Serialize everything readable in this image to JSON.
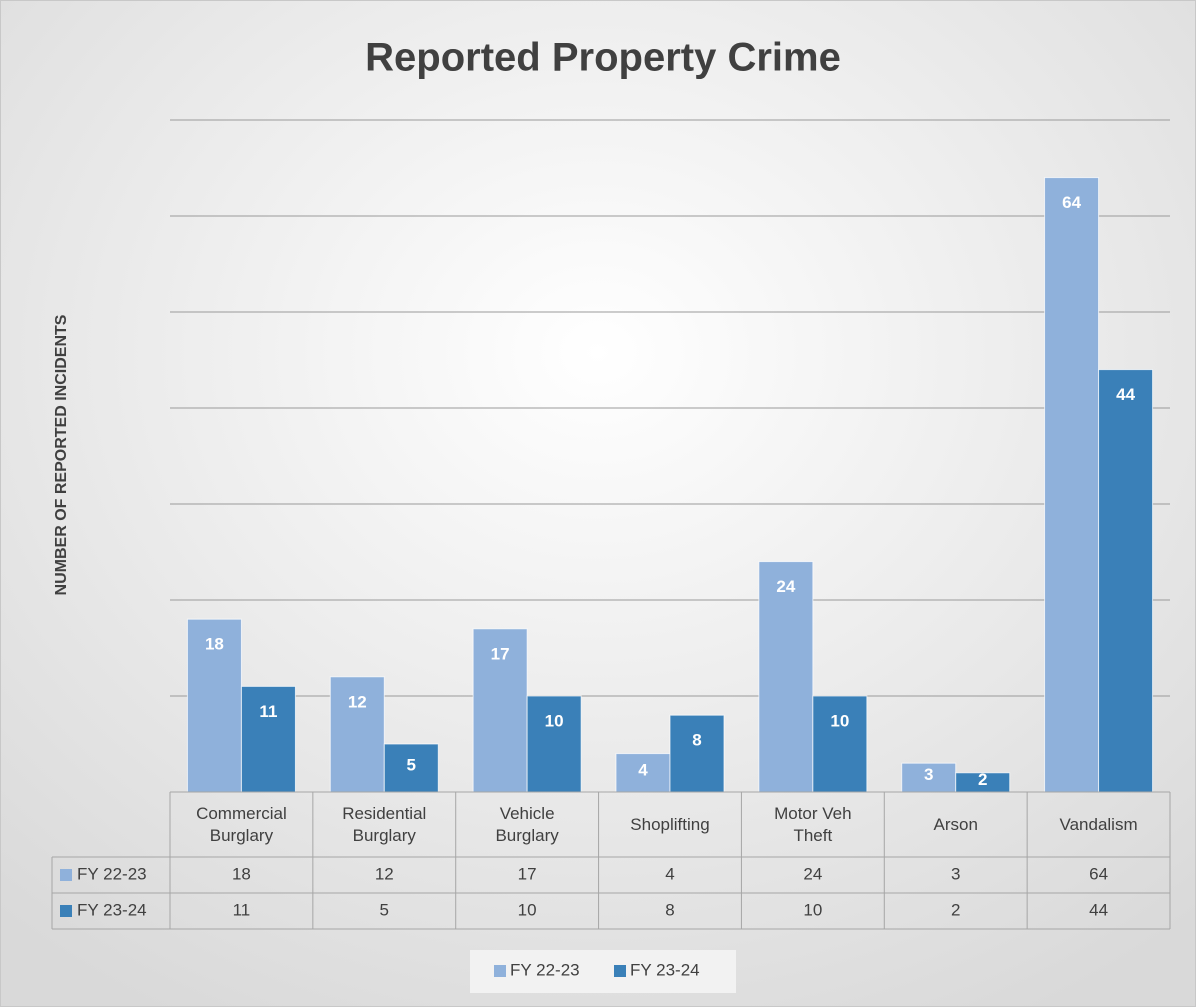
{
  "chart_data": {
    "type": "bar",
    "title": "Reported Property Crime",
    "y_label": "NUMBER OF REPORTED INCIDENTS",
    "categories": [
      "Commercial Burglary",
      "Residential Burglary",
      "Vehicle Burglary",
      "Shoplifting",
      "Motor Veh Theft",
      "Arson",
      "Vandalism"
    ],
    "series": [
      {
        "name": "FY 22-23",
        "color": "#8fb1db",
        "values": [
          18,
          12,
          17,
          4,
          24,
          3,
          64
        ]
      },
      {
        "name": "FY 23-24",
        "color": "#3a80b8",
        "values": [
          11,
          5,
          10,
          8,
          10,
          2,
          44
        ]
      }
    ],
    "ylim": [
      0,
      70
    ],
    "yticks": [
      0,
      10,
      20,
      30,
      40,
      50,
      60,
      70
    ],
    "grid": true,
    "data_table": true,
    "legend": "bottom"
  }
}
